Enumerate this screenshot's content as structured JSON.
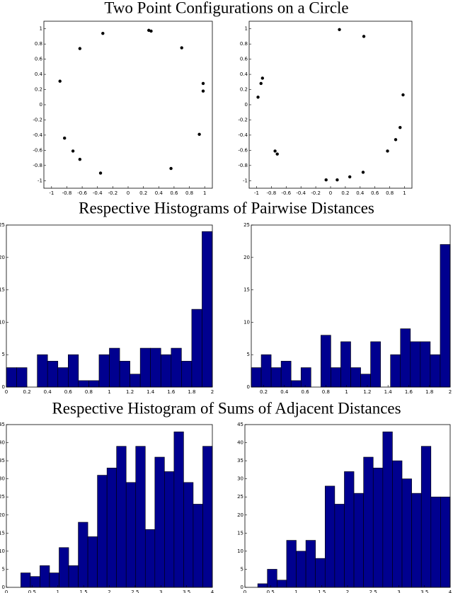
{
  "titles": [
    "Two Point Configurations on a Circle",
    "Respective Histograms of Pairwise Distances",
    "Respective Histogram of Sums of Adjacent Distances"
  ],
  "chart_data": [
    {
      "type": "scatter",
      "color": "#000000",
      "x": [
        -0.33,
        0.27,
        0.3,
        0.7,
        -0.63,
        -0.89,
        0.98,
        0.98,
        0.93,
        -0.83,
        -0.72,
        -0.63,
        -0.36,
        0.56
      ],
      "y": [
        0.94,
        0.98,
        0.97,
        0.75,
        0.74,
        0.31,
        0.28,
        0.18,
        -0.39,
        -0.44,
        -0.61,
        -0.72,
        -0.9,
        -0.84
      ],
      "xlim": [
        -1.1,
        1.1
      ],
      "ylim": [
        -1.1,
        1.1
      ],
      "xticks": [
        -1,
        -0.8,
        -0.6,
        -0.4,
        -0.2,
        0,
        0.2,
        0.4,
        0.6,
        0.8,
        1
      ],
      "yticks": [
        -1,
        -0.8,
        -0.6,
        -0.4,
        -0.2,
        0,
        0.2,
        0.4,
        0.6,
        0.8,
        1
      ]
    },
    {
      "type": "scatter",
      "color": "#000000",
      "x": [
        0.12,
        0.45,
        -0.92,
        -0.94,
        -0.98,
        0.98,
        0.94,
        0.88,
        0.77,
        -0.75,
        -0.72,
        0.44,
        0.26,
        0.09,
        -0.06
      ],
      "y": [
        0.99,
        0.9,
        0.35,
        0.28,
        0.1,
        0.13,
        -0.3,
        -0.46,
        -0.61,
        -0.61,
        -0.65,
        -0.89,
        -0.95,
        -0.99,
        -0.99
      ],
      "xlim": [
        -1.1,
        1.1
      ],
      "ylim": [
        -1.1,
        1.1
      ],
      "xticks": [
        -1,
        -0.8,
        -0.6,
        -0.4,
        -0.2,
        0,
        0.2,
        0.4,
        0.6,
        0.8,
        1
      ],
      "yticks": [
        -1,
        -0.8,
        -0.6,
        -0.4,
        -0.2,
        0,
        0.2,
        0.4,
        0.6,
        0.8,
        1
      ]
    },
    {
      "type": "histogram",
      "color": "#00008f",
      "bins": [
        0,
        0.1,
        0.2,
        0.3,
        0.4,
        0.5,
        0.6,
        0.7,
        0.8,
        0.9,
        1,
        1.1,
        1.2,
        1.3,
        1.4,
        1.5,
        1.6,
        1.7,
        1.8,
        1.9,
        2
      ],
      "values": [
        3,
        3,
        0,
        5,
        4,
        3,
        5,
        1,
        1,
        5,
        6,
        4,
        2,
        6,
        6,
        5,
        6,
        4,
        12,
        24
      ],
      "xlim": [
        0,
        2
      ],
      "ylim": [
        0,
        25
      ],
      "xticks": [
        0,
        0.2,
        0.4,
        0.6,
        0.8,
        1,
        1.2,
        1.4,
        1.6,
        1.8,
        2
      ],
      "yticks": [
        0,
        5,
        10,
        15,
        20,
        25
      ]
    },
    {
      "type": "histogram",
      "color": "#00008f",
      "bins": [
        0.08,
        0.176,
        0.272,
        0.368,
        0.464,
        0.56,
        0.656,
        0.752,
        0.848,
        0.944,
        1.04,
        1.136,
        1.232,
        1.328,
        1.424,
        1.52,
        1.616,
        1.712,
        1.808,
        1.904,
        2
      ],
      "values": [
        3,
        5,
        3,
        4,
        1,
        3,
        0,
        8,
        3,
        7,
        3,
        2,
        7,
        0,
        5,
        9,
        7,
        7,
        5,
        22
      ],
      "xlim": [
        0.08,
        2
      ],
      "ylim": [
        0,
        25
      ],
      "xticks": [
        0.2,
        0.4,
        0.6,
        0.8,
        1,
        1.2,
        1.4,
        1.6,
        1.8,
        2
      ],
      "yticks": [
        0,
        5,
        10,
        15,
        20,
        25
      ]
    },
    {
      "type": "histogram",
      "color": "#00008f",
      "bins": [
        0.28,
        0.466,
        0.652,
        0.838,
        1.024,
        1.21,
        1.396,
        1.582,
        1.768,
        1.954,
        2.14,
        2.326,
        2.512,
        2.698,
        2.884,
        3.07,
        3.256,
        3.442,
        3.628,
        3.814,
        4
      ],
      "values": [
        4,
        3,
        6,
        4,
        11,
        6,
        18,
        14,
        31,
        33,
        39,
        29,
        39,
        16,
        36,
        32,
        43,
        29,
        23,
        39
      ],
      "xlim": [
        0,
        4
      ],
      "ylim": [
        0,
        45
      ],
      "xticks": [
        0,
        0.5,
        1,
        1.5,
        2,
        2.5,
        3,
        3.5,
        4
      ],
      "yticks": [
        0,
        5,
        10,
        15,
        20,
        25,
        30,
        35,
        40,
        45
      ]
    },
    {
      "type": "histogram",
      "color": "#00008f",
      "bins": [
        0.25,
        0.4375,
        0.625,
        0.8125,
        1,
        1.1875,
        1.375,
        1.5625,
        1.75,
        1.9375,
        2.125,
        2.3125,
        2.5,
        2.6875,
        2.875,
        3.0625,
        3.25,
        3.4375,
        3.625,
        3.8125,
        4
      ],
      "values": [
        1,
        5,
        2,
        13,
        10,
        13,
        8,
        28,
        23,
        32,
        26,
        36,
        33,
        43,
        35,
        30,
        26,
        39,
        25,
        25
      ],
      "xlim": [
        0,
        4
      ],
      "ylim": [
        0,
        45
      ],
      "xticks": [
        0,
        0.5,
        1,
        1.5,
        2,
        2.5,
        3,
        3.5,
        4
      ],
      "yticks": [
        0,
        5,
        10,
        15,
        20,
        25,
        30,
        35,
        40,
        45
      ]
    }
  ]
}
